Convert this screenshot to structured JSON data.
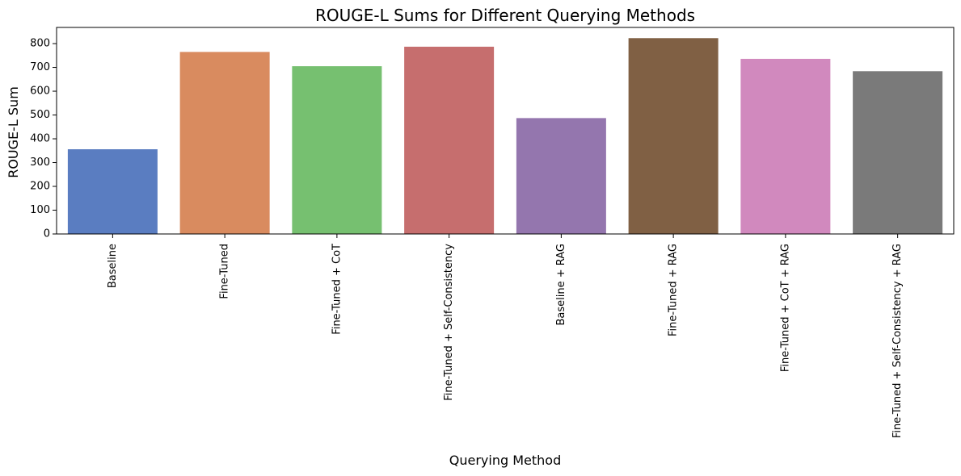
{
  "chart_data": {
    "type": "bar",
    "title": "ROUGE-L Sums for Different Querying Methods",
    "xlabel": "Querying Method",
    "ylabel": "ROUGE-L Sum",
    "categories": [
      "Baseline",
      "Fine-Tuned",
      "Fine-Tuned + CoT",
      "Fine-Tuned + Self-Consistency",
      "Baseline + RAG",
      "Fine-Tuned + RAG",
      "Fine-Tuned + CoT + RAG",
      "Fine-Tuned + Self-Consistency + RAG"
    ],
    "values": [
      356,
      765,
      705,
      787,
      487,
      823,
      736,
      684
    ],
    "colors": [
      "#5a7dc1",
      "#d98b5f",
      "#76c070",
      "#c66e6e",
      "#9476ae",
      "#806044",
      "#d189be",
      "#7a7a7a"
    ],
    "ylim": [
      0,
      868
    ],
    "yticks": [
      0,
      100,
      200,
      300,
      400,
      500,
      600,
      700,
      800
    ],
    "grid": false,
    "legend": false
  }
}
